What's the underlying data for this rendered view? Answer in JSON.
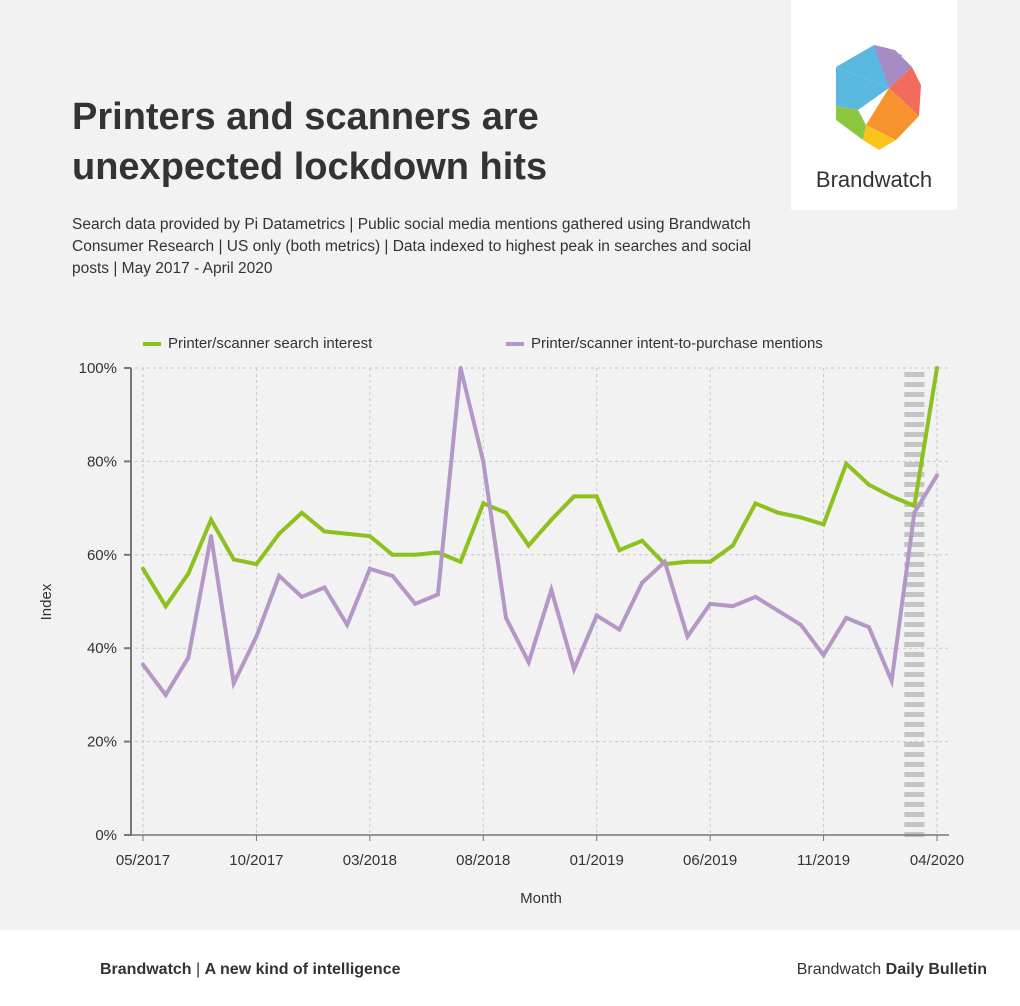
{
  "header": {
    "title_line1": "Printers and scanners are",
    "title_line2": "unexpected lockdown hits",
    "subtitle": "Search data provided by Pi Datametrics | Public social media mentions gathered using Brandwatch Consumer Research | US only (both metrics) | Data indexed to highest peak in searches and social posts | May 2017 - April 2020"
  },
  "logo": {
    "text": "Brandwatch"
  },
  "footer": {
    "left_brand": "Brandwatch",
    "left_sep": " | ",
    "left_tag": "A new kind of intelligence",
    "right_pre": "Brandwatch ",
    "right_bold": "Daily Bulletin"
  },
  "chart_data": {
    "type": "line",
    "xlabel": "Month",
    "ylabel": "Index",
    "ylim": [
      0,
      100
    ],
    "grid": true,
    "legend": "top",
    "yticks": [
      0,
      20,
      40,
      60,
      80,
      100
    ],
    "ytick_labels": [
      "0%",
      "20%",
      "40%",
      "60%",
      "80%",
      "100%"
    ],
    "xtick_labels": [
      "05/2017",
      "10/2017",
      "03/2018",
      "08/2018",
      "01/2019",
      "06/2019",
      "11/2019",
      "04/2020"
    ],
    "xtick_index": [
      0,
      5,
      10,
      15,
      20,
      25,
      30,
      35
    ],
    "highlight_index": 34,
    "series": [
      {
        "name": "Printer/scanner search interest",
        "color": "#8cc11e",
        "values": [
          57,
          49,
          56,
          67.5,
          59,
          58,
          64.5,
          69,
          65,
          64.5,
          64,
          60,
          60,
          60.5,
          58.5,
          71,
          69,
          62,
          67.5,
          72.5,
          72.5,
          61,
          63,
          58,
          58.5,
          58.5,
          62,
          71,
          69,
          68,
          66.5,
          79.5,
          75,
          72.5,
          70.5,
          100
        ]
      },
      {
        "name": "Printer/scanner intent-to-purchase mentions",
        "color": "#b497c7",
        "values": [
          36.5,
          30,
          38,
          64,
          32.5,
          42.5,
          55.5,
          51,
          53,
          45,
          57,
          55.5,
          49.5,
          51.5,
          100,
          80,
          46.5,
          37,
          52.5,
          35.5,
          47,
          44,
          54,
          58.5,
          42.5,
          49.5,
          49,
          51,
          48,
          45,
          38.5,
          46.5,
          44.5,
          33,
          69,
          77
        ]
      }
    ]
  }
}
